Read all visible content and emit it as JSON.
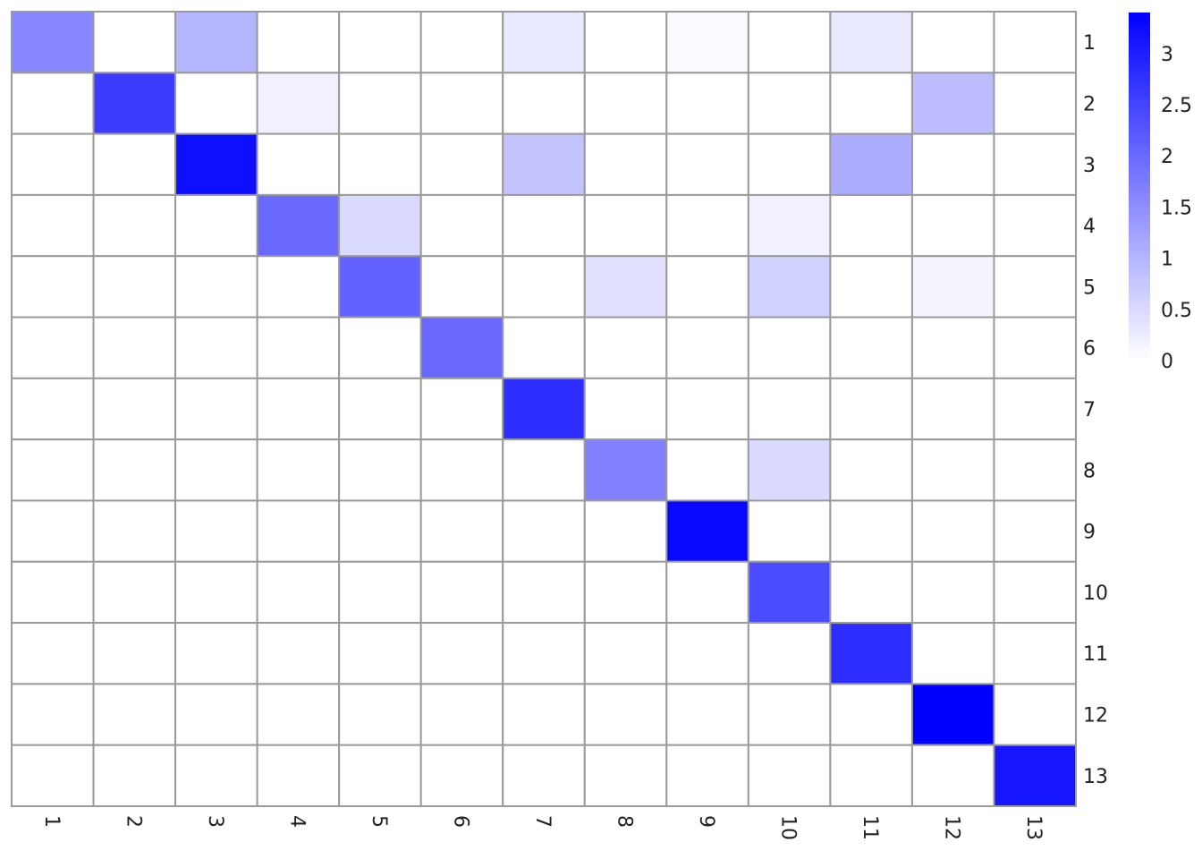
{
  "chart_data": {
    "type": "heatmap",
    "title": "",
    "xlabel": "",
    "ylabel": "",
    "x_tick_labels": [
      "1",
      "2",
      "3",
      "4",
      "5",
      "6",
      "7",
      "8",
      "9",
      "10",
      "11",
      "12",
      "13"
    ],
    "y_tick_labels": [
      "1",
      "2",
      "3",
      "4",
      "5",
      "6",
      "7",
      "8",
      "9",
      "10",
      "11",
      "12",
      "13"
    ],
    "values": [
      [
        1.6,
        0,
        1.0,
        0,
        0,
        0,
        0.3,
        0,
        0.05,
        0,
        0.3,
        0,
        0
      ],
      [
        0,
        2.6,
        0,
        0.2,
        0,
        0,
        0,
        0,
        0,
        0,
        0,
        0.9,
        0
      ],
      [
        0,
        0,
        3.2,
        0,
        0,
        0,
        0.8,
        0,
        0,
        0,
        1.1,
        0,
        0
      ],
      [
        0,
        0,
        0,
        2.0,
        0.5,
        0,
        0,
        0,
        0,
        0.2,
        0,
        0,
        0
      ],
      [
        0,
        0,
        0,
        0,
        2.1,
        0,
        0,
        0.4,
        0,
        0.6,
        0,
        0.15,
        0
      ],
      [
        0,
        0,
        0,
        0,
        0,
        2.0,
        0,
        0,
        0,
        0,
        0,
        0,
        0
      ],
      [
        0,
        0,
        0,
        0,
        0,
        0,
        2.8,
        0,
        0,
        0,
        0,
        0,
        0
      ],
      [
        0,
        0,
        0,
        0,
        0,
        0,
        0,
        1.7,
        0,
        0.5,
        0,
        0,
        0
      ],
      [
        0,
        0,
        0,
        0,
        0,
        0,
        0,
        0,
        3.3,
        0,
        0,
        0,
        0
      ],
      [
        0,
        0,
        0,
        0,
        0,
        0,
        0,
        0,
        0,
        2.4,
        0,
        0,
        0
      ],
      [
        0,
        0,
        0,
        0,
        0,
        0,
        0,
        0,
        0,
        0,
        2.8,
        0,
        0
      ],
      [
        0,
        0,
        0,
        0,
        0,
        0,
        0,
        0,
        0,
        0,
        0,
        3.4,
        0
      ],
      [
        0,
        0,
        0,
        0,
        0,
        0,
        0,
        0,
        0,
        0,
        0,
        0,
        3.1
      ]
    ],
    "colorbar": {
      "min": 0,
      "max": 3.4,
      "ticks": [
        0,
        0.5,
        1,
        1.5,
        2,
        2.5,
        3
      ],
      "tick_labels": [
        "0",
        "0.5",
        "1",
        "1.5",
        "2",
        "2.5",
        "3"
      ],
      "low_color": "#ffffff",
      "high_color": "#0000ff"
    },
    "grid_color": "#9a9a9a",
    "legend_position": "right"
  }
}
